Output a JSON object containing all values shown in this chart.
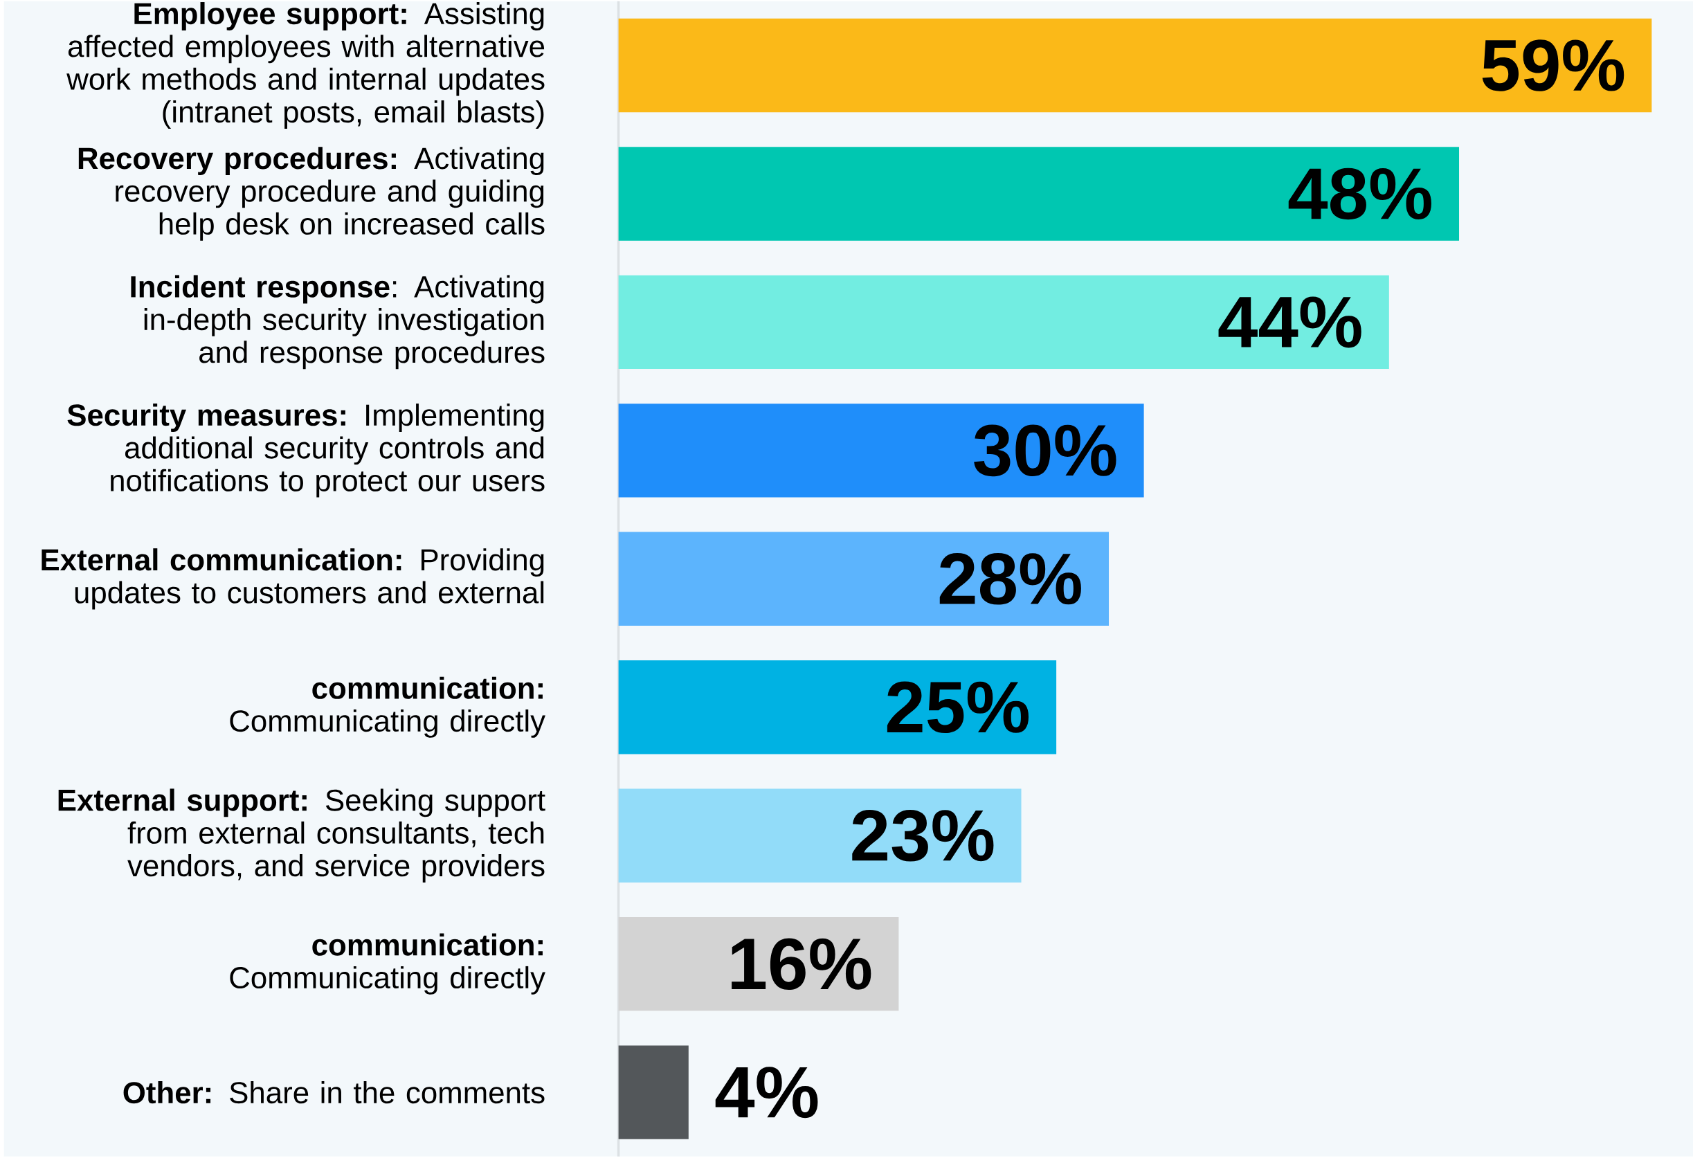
{
  "chart_data": {
    "type": "bar",
    "orientation": "horizontal",
    "categories": [
      "**Employee support:** Assisting affected employees with alternative work methods and internal updates (intranet posts, email blasts)",
      "**Recovery procedures:** Activating recovery procedure and guiding help desk on increased calls",
      "**Incident response**: Activating in-depth security investigation and response procedures",
      "**Security measures:** Implementing additional security controls and notifications to protect our users",
      "**External communication:** Providing updates to customers and external",
      "**communication:** Communicating directly",
      "**External support:** Seeking support from external consultants, tech vendors, and service providers",
      "**communication:** Communicating directly",
      "**Other:** Share in the comments"
    ],
    "values": [
      59,
      48,
      44,
      30,
      28,
      25,
      23,
      16,
      4
    ],
    "colors": [
      "#fbb918",
      "#00c7b1",
      "#72ede1",
      "#1f8efa",
      "#5cb4fd",
      "#00b2e3",
      "#92dcf9",
      "#d3d3d3",
      "#53575a"
    ],
    "value_labels": [
      "59%",
      "48%",
      "44%",
      "30%",
      "28%",
      "25%",
      "23%",
      "16%",
      "4%"
    ]
  }
}
